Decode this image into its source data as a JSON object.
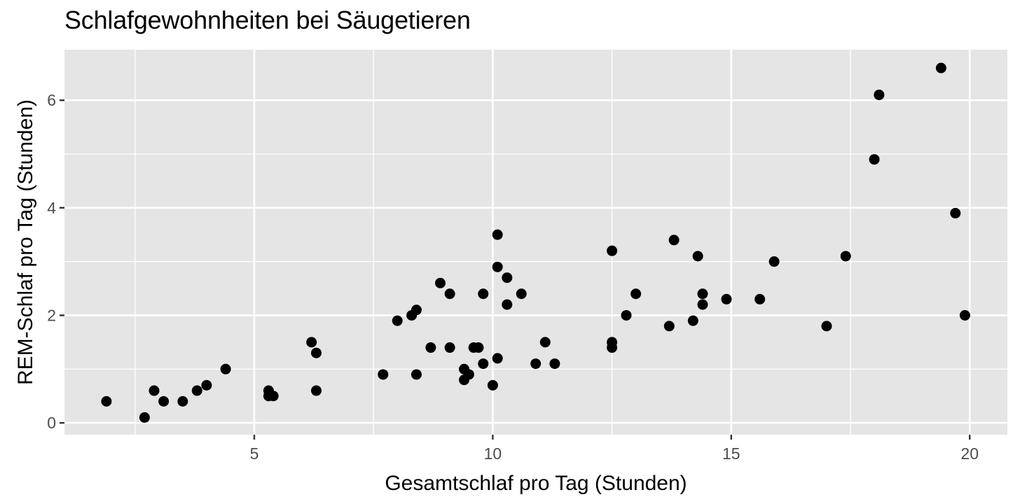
{
  "chart_data": {
    "type": "scatter",
    "title": "Schlafgewohnheiten bei Säugetieren",
    "xlabel": "Gesamtschlaf pro Tag (Stunden)",
    "ylabel": "REM-Schlaf pro Tag (Stunden)",
    "xlim": [
      1.02,
      20.79
    ],
    "ylim": [
      -0.22,
      6.94
    ],
    "x_ticks": [
      5,
      10,
      15,
      20
    ],
    "x_tick_labels": [
      "5",
      "10",
      "15",
      "20"
    ],
    "x_minor": [
      2.5,
      7.5,
      12.5,
      17.5
    ],
    "y_ticks": [
      0,
      2,
      4,
      6
    ],
    "y_tick_labels": [
      "0",
      "2",
      "4",
      "6"
    ],
    "y_minor": [
      1,
      3,
      5
    ],
    "grid": true,
    "legend": null,
    "point_color": "#000000",
    "panel_background": "#e5e5e5",
    "grid_color": "#ffffff",
    "points": [
      {
        "x": 1.9,
        "y": 0.4
      },
      {
        "x": 2.7,
        "y": 0.1
      },
      {
        "x": 2.9,
        "y": 0.6
      },
      {
        "x": 3.1,
        "y": 0.4
      },
      {
        "x": 3.5,
        "y": 0.4
      },
      {
        "x": 3.8,
        "y": 0.6
      },
      {
        "x": 4.0,
        "y": 0.7
      },
      {
        "x": 4.4,
        "y": 1.0
      },
      {
        "x": 5.3,
        "y": 0.6
      },
      {
        "x": 5.3,
        "y": 0.5
      },
      {
        "x": 5.4,
        "y": 0.5
      },
      {
        "x": 6.2,
        "y": 1.5
      },
      {
        "x": 6.3,
        "y": 1.3
      },
      {
        "x": 6.3,
        "y": 0.6
      },
      {
        "x": 7.7,
        "y": 0.9
      },
      {
        "x": 8.0,
        "y": 1.9
      },
      {
        "x": 8.3,
        "y": 2.0
      },
      {
        "x": 8.4,
        "y": 2.1
      },
      {
        "x": 8.4,
        "y": 0.9
      },
      {
        "x": 8.7,
        "y": 1.4
      },
      {
        "x": 8.9,
        "y": 2.6
      },
      {
        "x": 9.1,
        "y": 2.4
      },
      {
        "x": 9.1,
        "y": 1.4
      },
      {
        "x": 9.4,
        "y": 1.0
      },
      {
        "x": 9.4,
        "y": 0.8
      },
      {
        "x": 9.5,
        "y": 0.9
      },
      {
        "x": 9.6,
        "y": 1.4
      },
      {
        "x": 9.7,
        "y": 1.4
      },
      {
        "x": 9.8,
        "y": 2.4
      },
      {
        "x": 9.8,
        "y": 1.1
      },
      {
        "x": 10.0,
        "y": 0.7
      },
      {
        "x": 10.1,
        "y": 3.5
      },
      {
        "x": 10.1,
        "y": 2.9
      },
      {
        "x": 10.1,
        "y": 1.2
      },
      {
        "x": 10.3,
        "y": 2.7
      },
      {
        "x": 10.3,
        "y": 2.2
      },
      {
        "x": 10.6,
        "y": 2.4
      },
      {
        "x": 10.9,
        "y": 1.1
      },
      {
        "x": 11.1,
        "y": 1.5
      },
      {
        "x": 11.3,
        "y": 1.1
      },
      {
        "x": 12.5,
        "y": 3.2
      },
      {
        "x": 12.5,
        "y": 1.5
      },
      {
        "x": 12.5,
        "y": 1.4
      },
      {
        "x": 12.8,
        "y": 2.0
      },
      {
        "x": 13.0,
        "y": 2.4
      },
      {
        "x": 13.7,
        "y": 1.8
      },
      {
        "x": 13.8,
        "y": 3.4
      },
      {
        "x": 14.2,
        "y": 1.9
      },
      {
        "x": 14.3,
        "y": 3.1
      },
      {
        "x": 14.4,
        "y": 2.4
      },
      {
        "x": 14.4,
        "y": 2.2
      },
      {
        "x": 14.9,
        "y": 2.3
      },
      {
        "x": 15.6,
        "y": 2.3
      },
      {
        "x": 15.9,
        "y": 3.0
      },
      {
        "x": 17.0,
        "y": 1.8
      },
      {
        "x": 17.4,
        "y": 3.1
      },
      {
        "x": 18.0,
        "y": 4.9
      },
      {
        "x": 18.1,
        "y": 6.1
      },
      {
        "x": 19.4,
        "y": 6.6
      },
      {
        "x": 19.7,
        "y": 3.9
      },
      {
        "x": 19.9,
        "y": 2.0
      }
    ]
  }
}
